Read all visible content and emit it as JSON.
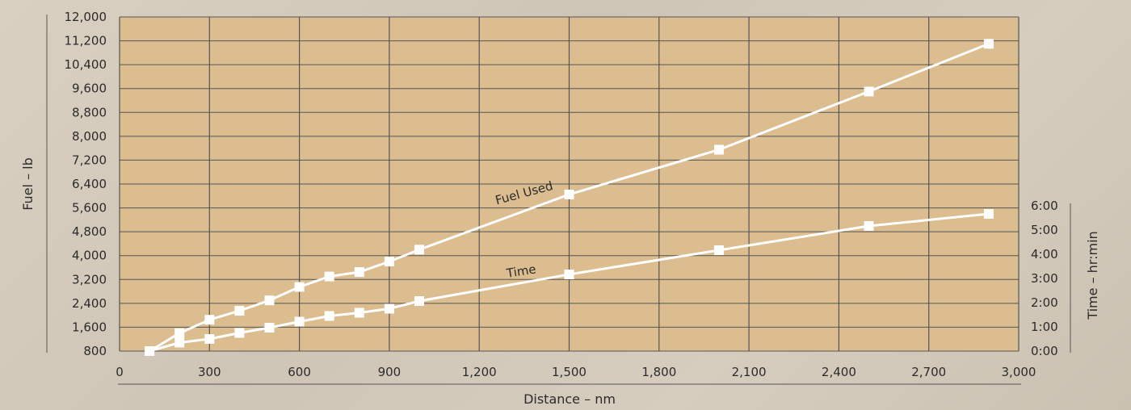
{
  "chart_data": {
    "type": "line",
    "xlabel": "Distance – nm",
    "ylabel_left": "Fuel – lb",
    "ylabel_right": "Time – hr:min",
    "xlim": [
      0,
      3000
    ],
    "ylim_left": [
      800,
      12000
    ],
    "ylim_right_minutes": [
      0,
      360
    ],
    "x_ticks": [
      "0",
      "300",
      "600",
      "900",
      "1,200",
      "1,500",
      "1,800",
      "2,100",
      "2,400",
      "2,700",
      "3,000"
    ],
    "y_left_ticks": [
      "800",
      "1,600",
      "2,400",
      "3,200",
      "4,000",
      "4,800",
      "5,600",
      "6,400",
      "7,200",
      "8,000",
      "8,800",
      "9,600",
      "10,400",
      "11,200",
      "12,000"
    ],
    "y_right_ticks": [
      "0:00",
      "1:00",
      "2:00",
      "3:00",
      "4:00",
      "5:00",
      "6:00"
    ],
    "grid": true,
    "series": [
      {
        "name": "Fuel Used",
        "axis": "left",
        "x": [
          100,
          200,
          300,
          400,
          500,
          600,
          700,
          800,
          900,
          1000,
          1500,
          2000,
          2500,
          2900
        ],
        "y": [
          800,
          1400,
          1850,
          2150,
          2500,
          2950,
          3300,
          3450,
          3800,
          4200,
          6050,
          7550,
          9500,
          11100
        ]
      },
      {
        "name": "Time",
        "axis": "right",
        "x": [
          100,
          200,
          300,
          400,
          500,
          600,
          700,
          800,
          900,
          1000,
          1500,
          2000,
          2500,
          2900
        ],
        "y": [
          0,
          21,
          30,
          45,
          58,
          73,
          87,
          95,
          105,
          124,
          190,
          250,
          310,
          340
        ]
      }
    ],
    "colors": {
      "plot_bg": "#dbbd8f",
      "grid": "#555555",
      "line": "#ffffff",
      "text": "#2b2b2b",
      "axis_rule": "#555555"
    }
  }
}
